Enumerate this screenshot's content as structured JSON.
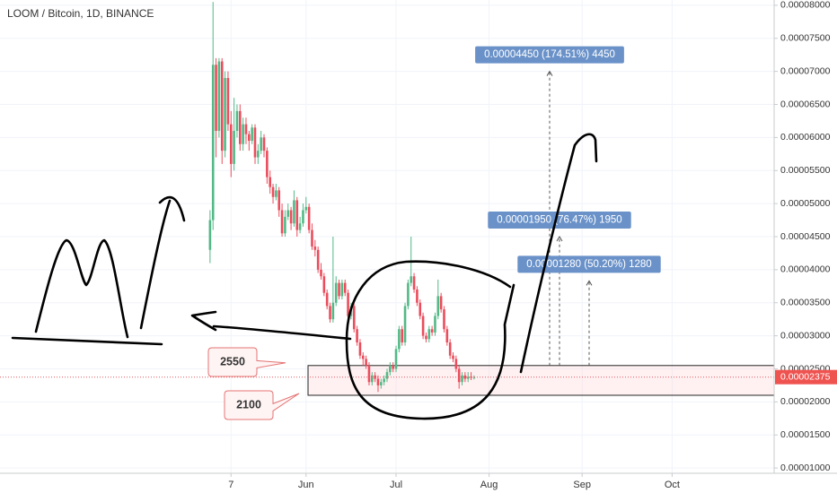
{
  "chart_data": {
    "type": "candlestick",
    "title": "LOOM / Bitcoin, 1D, BINANCE",
    "up_color": "#53b987",
    "down_color": "#eb4d5c",
    "grid": true,
    "xlim": [
      50,
      308
    ],
    "ylim": [
      9.2e-06,
      8.08e-05
    ],
    "xticks": [
      {
        "value": 127,
        "label": "7"
      },
      {
        "value": 152,
        "label": "Jun"
      },
      {
        "value": 182,
        "label": "Jul"
      },
      {
        "value": 213,
        "label": "Aug"
      },
      {
        "value": 244,
        "label": "Sep"
      },
      {
        "value": 274,
        "label": "Oct"
      }
    ],
    "yticks": [
      {
        "value": 1e-05,
        "label": "0.00001000"
      },
      {
        "value": 1.5e-05,
        "label": "0.00001500"
      },
      {
        "value": 2e-05,
        "label": "0.00002000"
      },
      {
        "value": 2.5e-05,
        "label": "0.00002500"
      },
      {
        "value": 3e-05,
        "label": "0.00003000"
      },
      {
        "value": 3.5e-05,
        "label": "0.00003500"
      },
      {
        "value": 4e-05,
        "label": "0.00004000"
      },
      {
        "value": 4.5e-05,
        "label": "0.00004500"
      },
      {
        "value": 5e-05,
        "label": "0.00005000"
      },
      {
        "value": 5.5e-05,
        "label": "0.00005500"
      },
      {
        "value": 6e-05,
        "label": "0.00006000"
      },
      {
        "value": 6.5e-05,
        "label": "0.00006500"
      },
      {
        "value": 7e-05,
        "label": "0.00007000"
      },
      {
        "value": 7.5e-05,
        "label": "0.00007500"
      },
      {
        "value": 8e-05,
        "label": "0.00008000"
      }
    ],
    "x": [
      120,
      121,
      122,
      123,
      124,
      125,
      126,
      127,
      128,
      129,
      130,
      131,
      132,
      133,
      134,
      135,
      136,
      137,
      138,
      139,
      140,
      141,
      142,
      143,
      144,
      145,
      146,
      147,
      148,
      149,
      150,
      151,
      152,
      153,
      154,
      155,
      156,
      157,
      158,
      159,
      160,
      161,
      162,
      163,
      164,
      165,
      166,
      167,
      168,
      169,
      170,
      171,
      172,
      173,
      174,
      175,
      176,
      177,
      178,
      179,
      180,
      181,
      182,
      183,
      184,
      185,
      186,
      187,
      188,
      189,
      190,
      191,
      192,
      193,
      194,
      195,
      196,
      197,
      198,
      199,
      200,
      201,
      202,
      203,
      204,
      205,
      206,
      207,
      208
    ],
    "open": [
      4.3e-05,
      4.75e-05,
      7.1e-05,
      6.1e-05,
      7.15e-05,
      5.8e-05,
      6.9e-05,
      6.2e-05,
      5.6e-05,
      6.1e-05,
      6.4e-05,
      5.9e-05,
      6.2e-05,
      6.05e-05,
      5.95e-05,
      6.15e-05,
      5.7e-05,
      5.8e-05,
      6e-05,
      5.8e-05,
      5.4e-05,
      5.25e-05,
      5.1e-05,
      5.2e-05,
      4.9e-05,
      4.55e-05,
      4.8e-05,
      4.9e-05,
      4.7e-05,
      5.05e-05,
      4.6e-05,
      4.7e-05,
      4.9e-05,
      4.95e-05,
      4.6e-05,
      4.35e-05,
      4.3e-05,
      4e-05,
      3.9e-05,
      3.65e-05,
      3.45e-05,
      3.25e-05,
      3.5e-05,
      3.8e-05,
      3.6e-05,
      3.8e-05,
      3.65e-05,
      3.3e-05,
      3.45e-05,
      3.1e-05,
      2.9e-05,
      2.7e-05,
      2.65e-05,
      2.55e-05,
      2.3e-05,
      2.4e-05,
      2.35e-05,
      2.25e-05,
      2.3e-05,
      2.35e-05,
      2.45e-05,
      2.55e-05,
      2.5e-05,
      2.8e-05,
      3.1e-05,
      2.9e-05,
      3.45e-05,
      3.8e-05,
      3.9e-05,
      3.7e-05,
      3.5e-05,
      3.3e-05,
      3e-05,
      2.95e-05,
      3.1e-05,
      3.05e-05,
      3.3e-05,
      3.6e-05,
      3.4e-05,
      3.1e-05,
      2.9e-05,
      2.7e-05,
      2.65e-05,
      2.5e-05,
      2.3e-05,
      2.4e-05,
      2.35e-05,
      2.38e-05,
      2.37e-05
    ],
    "high": [
      4.9e-05,
      8.05e-05,
      7.2e-05,
      7.2e-05,
      7.2e-05,
      7e-05,
      7e-05,
      6.4e-05,
      6.6e-05,
      6.5e-05,
      6.5e-05,
      6.3e-05,
      6.3e-05,
      6.1e-05,
      6.2e-05,
      6.2e-05,
      5.9e-05,
      6.1e-05,
      6.05e-05,
      5.85e-05,
      5.5e-05,
      5.3e-05,
      5.3e-05,
      5.25e-05,
      5e-05,
      4.9e-05,
      5e-05,
      4.95e-05,
      5.2e-05,
      5.1e-05,
      4.8e-05,
      5e-05,
      5.1e-05,
      5e-05,
      4.7e-05,
      4.45e-05,
      4.35e-05,
      4.1e-05,
      3.95e-05,
      3.7e-05,
      3.5e-05,
      4.5e-05,
      3.9e-05,
      3.85e-05,
      3.85e-05,
      3.85e-05,
      3.7e-05,
      3.5e-05,
      3.5e-05,
      3.15e-05,
      2.95e-05,
      2.75e-05,
      2.7e-05,
      2.6e-05,
      2.45e-05,
      2.45e-05,
      2.4e-05,
      2.35e-05,
      2.4e-05,
      2.5e-05,
      2.6e-05,
      2.6e-05,
      2.85e-05,
      3.15e-05,
      3.15e-05,
      3.5e-05,
      3.85e-05,
      4.5e-05,
      3.95e-05,
      3.75e-05,
      3.55e-05,
      3.35e-05,
      3.05e-05,
      3.15e-05,
      3.15e-05,
      3.35e-05,
      3.85e-05,
      3.65e-05,
      3.45e-05,
      3.15e-05,
      2.95e-05,
      2.75e-05,
      2.7e-05,
      2.55e-05,
      2.45e-05,
      2.45e-05,
      2.45e-05,
      2.45e-05,
      2.4e-05
    ],
    "low": [
      4.1e-05,
      4.6e-05,
      5.7e-05,
      6e-05,
      5.6e-05,
      5.7e-05,
      6.1e-05,
      5.4e-05,
      5.5e-05,
      6e-05,
      5.8e-05,
      5.8e-05,
      5.9e-05,
      5.8e-05,
      5.9e-05,
      5.6e-05,
      5.6e-05,
      5.75e-05,
      5.7e-05,
      5.3e-05,
      5.15e-05,
      5e-05,
      5.05e-05,
      4.8e-05,
      4.5e-05,
      4.5e-05,
      4.75e-05,
      4.6e-05,
      4.65e-05,
      4.5e-05,
      4.55e-05,
      4.65e-05,
      4.85e-05,
      4.55e-05,
      4.3e-05,
      4.2e-05,
      3.95e-05,
      3.85e-05,
      3.6e-05,
      3.4e-05,
      3.2e-05,
      3.2e-05,
      3.45e-05,
      3.55e-05,
      3.55e-05,
      3.6e-05,
      3.25e-05,
      3.25e-05,
      3.05e-05,
      2.85e-05,
      2.65e-05,
      2.55e-05,
      2.5e-05,
      2.25e-05,
      2.25e-05,
      2.3e-05,
      2.15e-05,
      2.2e-05,
      2.25e-05,
      2.3e-05,
      2.4e-05,
      2.45e-05,
      2.45e-05,
      2.75e-05,
      2.85e-05,
      2.85e-05,
      3.4e-05,
      3.75e-05,
      3.65e-05,
      3.45e-05,
      3.25e-05,
      2.95e-05,
      2.9e-05,
      2.9e-05,
      3e-05,
      3e-05,
      3.25e-05,
      3.35e-05,
      3.05e-05,
      2.85e-05,
      2.65e-05,
      2.6e-05,
      2.45e-05,
      2.2e-05,
      2.25e-05,
      2.3e-05,
      2.3e-05,
      2.33e-05,
      2.34e-05
    ],
    "close": [
      4.75e-05,
      7.1e-05,
      6.1e-05,
      7.15e-05,
      5.8e-05,
      6.9e-05,
      6.2e-05,
      5.6e-05,
      6.1e-05,
      6.4e-05,
      5.9e-05,
      6.2e-05,
      6.05e-05,
      5.95e-05,
      6.15e-05,
      5.7e-05,
      5.8e-05,
      6e-05,
      5.8e-05,
      5.4e-05,
      5.25e-05,
      5.1e-05,
      5.2e-05,
      4.9e-05,
      4.55e-05,
      4.8e-05,
      4.9e-05,
      4.7e-05,
      5.05e-05,
      4.6e-05,
      4.7e-05,
      4.9e-05,
      4.95e-05,
      4.6e-05,
      4.35e-05,
      4.3e-05,
      4e-05,
      3.9e-05,
      3.65e-05,
      3.45e-05,
      3.25e-05,
      3.5e-05,
      3.8e-05,
      3.6e-05,
      3.8e-05,
      3.65e-05,
      3.3e-05,
      3.45e-05,
      3.1e-05,
      2.9e-05,
      2.7e-05,
      2.65e-05,
      2.55e-05,
      2.3e-05,
      2.4e-05,
      2.35e-05,
      2.25e-05,
      2.3e-05,
      2.35e-05,
      2.45e-05,
      2.55e-05,
      2.5e-05,
      2.8e-05,
      3.1e-05,
      2.9e-05,
      3.45e-05,
      3.8e-05,
      3.9e-05,
      3.7e-05,
      3.5e-05,
      3.3e-05,
      3e-05,
      2.95e-05,
      3.1e-05,
      3.05e-05,
      3.3e-05,
      3.6e-05,
      3.4e-05,
      3.1e-05,
      2.9e-05,
      2.7e-05,
      2.65e-05,
      2.5e-05,
      2.3e-05,
      2.4e-05,
      2.35e-05,
      2.38e-05,
      2.37e-05,
      2.375e-05
    ],
    "last_price": {
      "value": 2.375e-05,
      "label": "0.00002375"
    },
    "zone": {
      "top": {
        "value": 2.55e-05,
        "label": "2550"
      },
      "bottom": {
        "value": 2.1e-05,
        "label": "2100"
      }
    },
    "measurements": [
      {
        "value": 4.45e-05,
        "label": "0.00004450 (174.51%) 4450"
      },
      {
        "value": 1.95e-05,
        "label": "0.00001950 (76.47%) 1950"
      },
      {
        "value": 1.28e-05,
        "label": "0.00001280 (50.20%) 1280"
      }
    ]
  }
}
